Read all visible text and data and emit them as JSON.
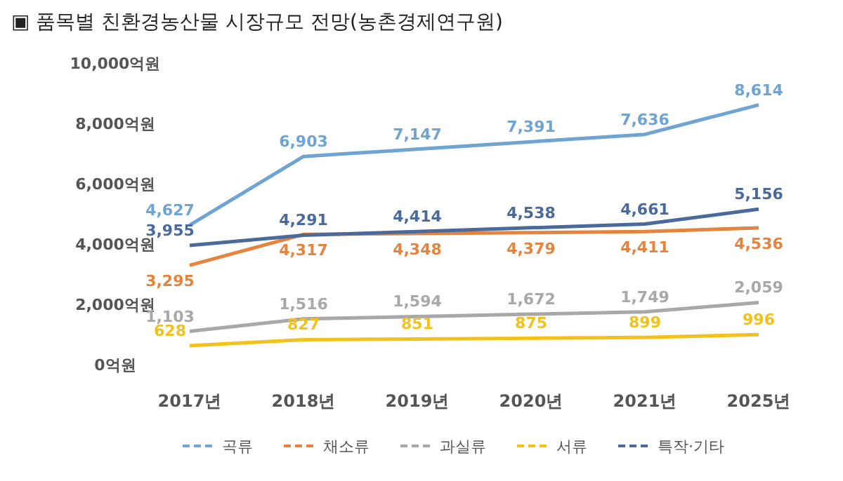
{
  "chart_data": {
    "type": "line",
    "title": "▣ 품목별 친환경농산물 시장규모 전망(농촌경제연구원)",
    "categories": [
      "2017년",
      "2018년",
      "2019년",
      "2020년",
      "2021년",
      "2025년"
    ],
    "series": [
      {
        "name": "곡류",
        "color": "#6fa3d2",
        "values": [
          4627,
          6903,
          7147,
          7391,
          7636,
          8614
        ],
        "value_labels": [
          "4,627",
          "6,903",
          "7,147",
          "7,391",
          "7,636",
          "8,614"
        ]
      },
      {
        "name": "채소류",
        "color": "#e4843f",
        "values": [
          3295,
          4317,
          4348,
          4379,
          4411,
          4536
        ],
        "value_labels": [
          "3,295",
          "4,317",
          "4,348",
          "4,379",
          "4,411",
          "4,536"
        ]
      },
      {
        "name": "과실류",
        "color": "#a8a8a8",
        "values": [
          1103,
          1516,
          1594,
          1672,
          1749,
          2059
        ],
        "value_labels": [
          "1,103",
          "1,516",
          "1,594",
          "1,672",
          "1,749",
          "2,059"
        ]
      },
      {
        "name": "서류",
        "color": "#f2c21b",
        "values": [
          628,
          827,
          851,
          875,
          899,
          996
        ],
        "value_labels": [
          "628",
          "827",
          "851",
          "875",
          "899",
          "996"
        ]
      },
      {
        "name": "특작·기타",
        "color": "#4a6a9c",
        "values": [
          3955,
          4291,
          4414,
          4538,
          4661,
          5156
        ],
        "value_labels": [
          "3,955",
          "4,291",
          "4,414",
          "4,538",
          "4,661",
          "5,156"
        ]
      }
    ],
    "ylim": [
      0,
      10000
    ],
    "yticks": [
      {
        "value": 0,
        "label": "0억원"
      },
      {
        "value": 2000,
        "label": "2,000억원"
      },
      {
        "value": 4000,
        "label": "4,000억원"
      },
      {
        "value": 6000,
        "label": "6,000억원"
      },
      {
        "value": 8000,
        "label": "8,000억원"
      },
      {
        "value": 10000,
        "label": "10,000억원"
      }
    ],
    "legend": "bottom",
    "grid": false,
    "marker": "none",
    "line_style": "solid"
  }
}
